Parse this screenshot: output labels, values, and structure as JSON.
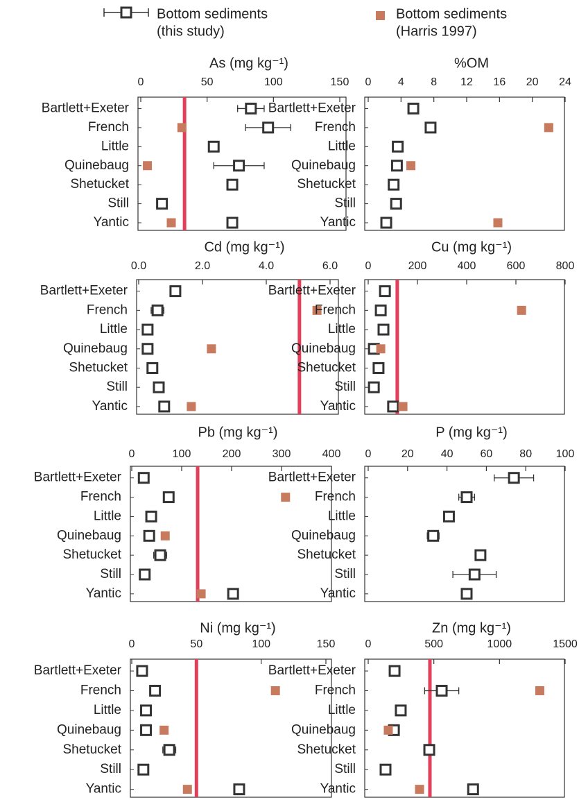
{
  "legend": [
    {
      "name": "Bottom sediments",
      "note": "(this study)",
      "color": "#333333"
    },
    {
      "name": "Bottom sediments",
      "note": "(Harris 1997)",
      "color": "#c87a5e"
    }
  ],
  "threshold_color": "#e2405a",
  "chart_data": [
    {
      "type": "dot",
      "title": "As (mg kg⁻¹)",
      "categories": [
        "Bartlett+Exeter",
        "French",
        "Little",
        "Quinebaug",
        "Shetucket",
        "Still",
        "Yantic"
      ],
      "xlim": [
        0,
        150
      ],
      "xticks": [
        0,
        50,
        100,
        150
      ],
      "series": [
        {
          "values": [
            83,
            96,
            55,
            74,
            69,
            16,
            69
          ],
          "errors": [
            10,
            17,
            null,
            19,
            4,
            null,
            null
          ]
        },
        {
          "values": [
            null,
            31,
            null,
            5,
            null,
            null,
            23
          ]
        }
      ],
      "threshold": 33
    },
    {
      "type": "dot",
      "title": "%OM",
      "categories": [
        "Bartlett+Exeter",
        "French",
        "Little",
        "Quinebaug",
        "Shetucket",
        "Still",
        "Yantic"
      ],
      "xlim": [
        0,
        24
      ],
      "xticks": [
        0,
        4,
        8,
        12,
        16,
        20,
        24
      ],
      "series": [
        {
          "values": [
            5.5,
            7.6,
            3.6,
            3.5,
            3.1,
            3.4,
            2.2
          ],
          "errors": [
            null,
            0.5,
            null,
            null,
            null,
            null,
            null
          ]
        },
        {
          "values": [
            null,
            22,
            null,
            5.2,
            null,
            null,
            15.8
          ]
        }
      ]
    },
    {
      "type": "dot",
      "title": "Cd (mg kg⁻¹)",
      "categories": [
        "Bartlett+Exeter",
        "French",
        "Little",
        "Quinebaug",
        "Shetucket",
        "Still",
        "Yantic"
      ],
      "xlim": [
        0,
        6
      ],
      "xticks": [
        {
          "value": 0,
          "label": "0.0"
        },
        {
          "value": 2,
          "label": "2.0"
        },
        {
          "value": 4,
          "label": "4.0"
        },
        {
          "value": 6,
          "label": "6.0"
        }
      ],
      "series": [
        {
          "values": [
            1.15,
            0.59,
            0.28,
            0.28,
            0.43,
            0.63,
            0.8
          ],
          "errors": [
            null,
            0.2,
            null,
            null,
            null,
            null,
            null
          ]
        },
        {
          "values": [
            null,
            5.59,
            null,
            2.28,
            null,
            null,
            1.65
          ]
        }
      ],
      "threshold": 5.04
    },
    {
      "type": "dot",
      "title": "Cu (mg kg⁻¹)",
      "categories": [
        "Bartlett+Exeter",
        "French",
        "Little",
        "Quinebaug",
        "Shetucket",
        "Still",
        "Yantic"
      ],
      "xlim": [
        0,
        800
      ],
      "xticks": [
        0,
        200,
        400,
        600,
        800
      ],
      "series": [
        {
          "values": [
            68,
            51,
            62,
            23,
            42,
            23,
            101
          ],
          "errors": [
            null,
            null,
            null,
            null,
            null,
            null,
            null
          ]
        },
        {
          "values": [
            null,
            623,
            null,
            51,
            null,
            null,
            141
          ]
        }
      ],
      "threshold": 118
    },
    {
      "type": "dot",
      "title": "Pb (mg kg⁻¹)",
      "categories": [
        "Bartlett+Exeter",
        "French",
        "Little",
        "Quinebaug",
        "Shetucket",
        "Still",
        "Yantic"
      ],
      "xlim": [
        0,
        400
      ],
      "xticks": [
        0,
        100,
        200,
        300,
        400
      ],
      "series": [
        {
          "values": [
            24,
            74,
            39,
            35,
            57,
            26,
            203
          ],
          "errors": [
            null,
            null,
            null,
            null,
            13,
            null,
            null
          ]
        },
        {
          "values": [
            null,
            308,
            null,
            67,
            null,
            null,
            139
          ]
        }
      ],
      "threshold": 132
    },
    {
      "type": "dot",
      "title": "P (mg kg⁻¹)",
      "categories": [
        "Bartlett+Exeter",
        "French",
        "Little",
        "Quinebaug",
        "Shetucket",
        "Still",
        "Yantic"
      ],
      "xlim": [
        0,
        100
      ],
      "xticks": [
        0,
        20,
        40,
        60,
        80,
        100
      ],
      "series": [
        {
          "values": [
            74,
            50,
            41,
            33,
            57,
            54,
            50
          ],
          "errors": [
            10,
            4,
            null,
            3,
            2,
            11,
            null
          ]
        }
      ]
    },
    {
      "type": "dot",
      "title": "Ni (mg kg⁻¹)",
      "categories": [
        "Bartlett+Exeter",
        "French",
        "Little",
        "Quinebaug",
        "Shetucket",
        "Still",
        "Yantic"
      ],
      "xlim": [
        0,
        150
      ],
      "xticks": [
        0,
        50,
        100,
        150
      ],
      "series": [
        {
          "values": [
            8,
            18,
            11,
            11,
            29,
            9,
            83
          ],
          "errors": [
            null,
            null,
            null,
            null,
            5,
            null,
            null
          ]
        },
        {
          "values": [
            null,
            111,
            null,
            25,
            null,
            null,
            43
          ]
        }
      ],
      "threshold": 50
    },
    {
      "type": "dot",
      "title": "Zn (mg kg⁻¹)",
      "categories": [
        "Bartlett+Exeter",
        "French",
        "Little",
        "Quinebaug",
        "Shetucket",
        "Still",
        "Yantic"
      ],
      "xlim": [
        0,
        1500
      ],
      "xticks": [
        0,
        500,
        1000,
        1500
      ],
      "series": [
        {
          "values": [
            201,
            560,
            248,
            196,
            465,
            132,
            799
          ],
          "errors": [
            null,
            130,
            null,
            null,
            40,
            null,
            null
          ]
        },
        {
          "values": [
            null,
            1307,
            null,
            153,
            null,
            null,
            391
          ]
        }
      ],
      "threshold": 470
    }
  ]
}
